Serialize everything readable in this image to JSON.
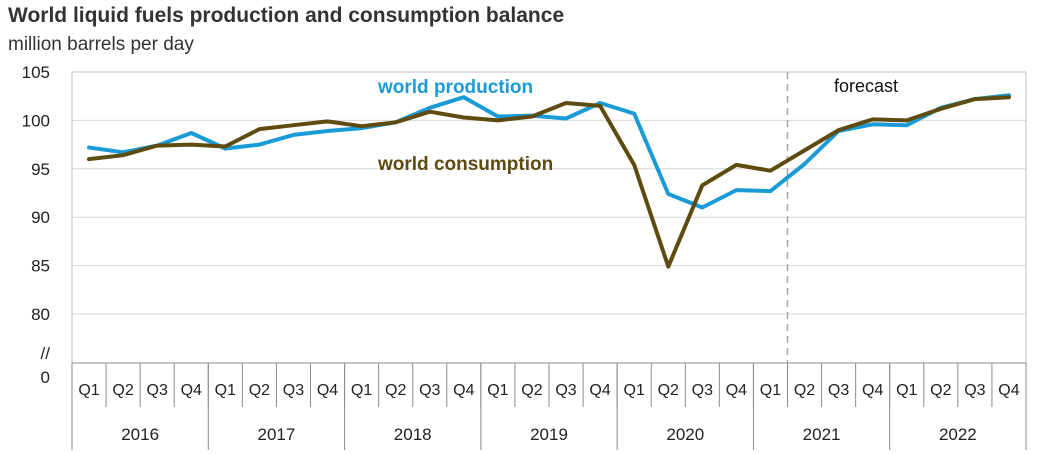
{
  "chart_data": {
    "type": "line",
    "title": "World liquid fuels production and consumption balance",
    "subtitle": "million barrels per day",
    "y_ticks": [
      "105",
      "100",
      "95",
      "90",
      "85",
      "80"
    ],
    "y_break_label": "//",
    "y_zero_label": "0",
    "ylim": [
      80,
      105
    ],
    "quarters": [
      "Q1",
      "Q2",
      "Q3",
      "Q4",
      "Q1",
      "Q2",
      "Q3",
      "Q4",
      "Q1",
      "Q2",
      "Q3",
      "Q4",
      "Q1",
      "Q2",
      "Q3",
      "Q4",
      "Q1",
      "Q2",
      "Q3",
      "Q4",
      "Q1",
      "Q2",
      "Q3",
      "Q4",
      "Q1",
      "Q2",
      "Q3",
      "Q4"
    ],
    "years": [
      "2016",
      "2017",
      "2018",
      "2019",
      "2020",
      "2021",
      "2022"
    ],
    "forecast_start_index": 20,
    "forecast_label": "forecast",
    "series": [
      {
        "name": "world production",
        "color": "#1a9bd7",
        "values": [
          97.2,
          96.7,
          97.4,
          98.7,
          97.1,
          97.5,
          98.5,
          98.9,
          99.2,
          99.8,
          101.3,
          102.4,
          100.4,
          100.5,
          100.2,
          101.8,
          100.7,
          92.4,
          91.0,
          92.8,
          92.7,
          95.5,
          98.9,
          99.6,
          99.5,
          101.3,
          102.2,
          102.6
        ]
      },
      {
        "name": "world consumption",
        "color": "#5e4b0f",
        "values": [
          96.0,
          96.4,
          97.4,
          97.5,
          97.3,
          99.1,
          99.5,
          99.9,
          99.4,
          99.8,
          100.9,
          100.3,
          100.0,
          100.4,
          101.8,
          101.5,
          95.4,
          84.9,
          93.3,
          95.4,
          94.8,
          96.9,
          99.0,
          100.1,
          100.0,
          101.2,
          102.2,
          102.4
        ]
      }
    ]
  }
}
